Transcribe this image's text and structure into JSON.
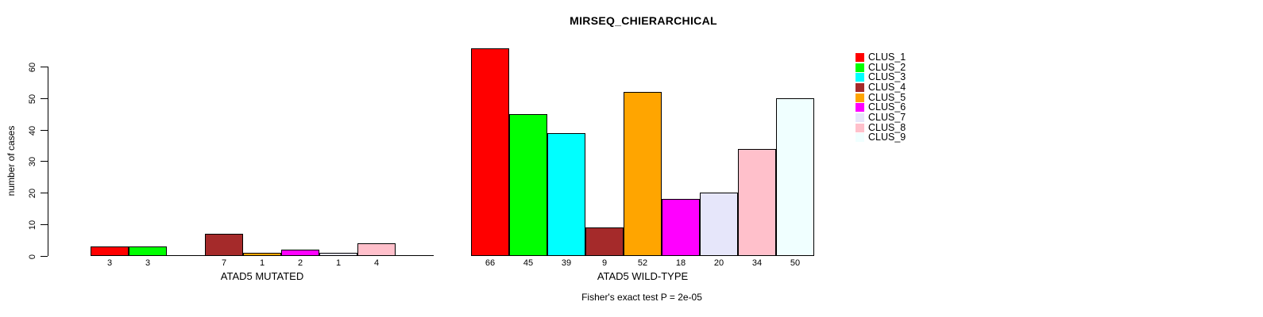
{
  "chart_data": {
    "type": "bar",
    "title": "MIRSEQ_CHIERARCHICAL",
    "ylabel": "number of cases",
    "ylim": [
      0,
      60
    ],
    "yticks": [
      0,
      10,
      20,
      30,
      40,
      50,
      60
    ],
    "grid": false,
    "legend_position": "right",
    "footnote": "Fisher's exact test P = 2e-05",
    "clusters": [
      {
        "label": "CLUS_1",
        "color": "#ff0000"
      },
      {
        "label": "CLUS_2",
        "color": "#00ff00"
      },
      {
        "label": "CLUS_3",
        "color": "#00ffff"
      },
      {
        "label": "CLUS_4",
        "color": "#a52a2a"
      },
      {
        "label": "CLUS_5",
        "color": "#ffa500"
      },
      {
        "label": "CLUS_6",
        "color": "#ff00ff"
      },
      {
        "label": "CLUS_7",
        "color": "#e6e6fa"
      },
      {
        "label": "CLUS_8",
        "color": "#ffc0cb"
      },
      {
        "label": "CLUS_9",
        "color": "#f0ffff"
      }
    ],
    "groups": [
      {
        "label": "ATAD5 MUTATED",
        "values": [
          3,
          3,
          0,
          7,
          1,
          2,
          1,
          4,
          0
        ]
      },
      {
        "label": "ATAD5 WILD-TYPE",
        "values": [
          66,
          45,
          39,
          9,
          52,
          18,
          20,
          34,
          50
        ]
      }
    ]
  }
}
